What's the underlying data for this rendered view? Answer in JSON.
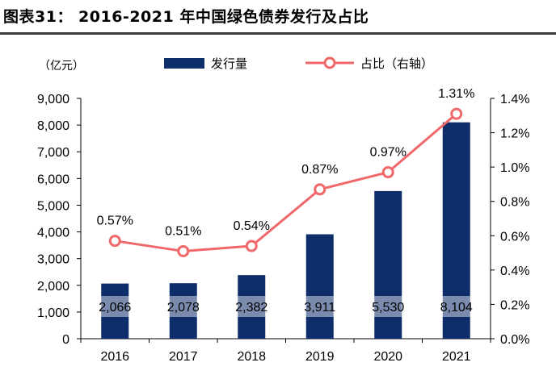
{
  "figure": {
    "title": "图表31：  2016-2021 年中国绿色债券发行及占比"
  },
  "chart_data": {
    "type": "bar",
    "categories": [
      "2016",
      "2017",
      "2018",
      "2019",
      "2020",
      "2021"
    ],
    "unit_left": "（亿元）",
    "series": [
      {
        "name": "发行量",
        "kind": "bar",
        "axis": "left",
        "values": [
          2066,
          2078,
          2382,
          3911,
          5530,
          8104
        ],
        "labels": [
          "2,066",
          "2,078",
          "2,382",
          "3,911",
          "5,530",
          "8,104"
        ],
        "color": "#0d2d6b"
      },
      {
        "name": "占比（右轴）",
        "kind": "line",
        "axis": "right",
        "values": [
          0.57,
          0.51,
          0.54,
          0.87,
          0.97,
          1.31
        ],
        "labels": [
          "0.57%",
          "0.51%",
          "0.54%",
          "0.87%",
          "0.97%",
          "1.31%"
        ],
        "color": "#f0686a"
      }
    ],
    "y_left": {
      "min": 0,
      "max": 9000,
      "ticks": [
        "0",
        "1,000",
        "2,000",
        "3,000",
        "4,000",
        "5,000",
        "6,000",
        "7,000",
        "8,000",
        "9,000"
      ]
    },
    "y_right": {
      "min": 0,
      "max": 1.4,
      "ticks": [
        "0.0%",
        "0.2%",
        "0.4%",
        "0.6%",
        "0.8%",
        "1.0%",
        "1.2%",
        "1.4%"
      ]
    },
    "legend_position": "top",
    "grid": false
  }
}
